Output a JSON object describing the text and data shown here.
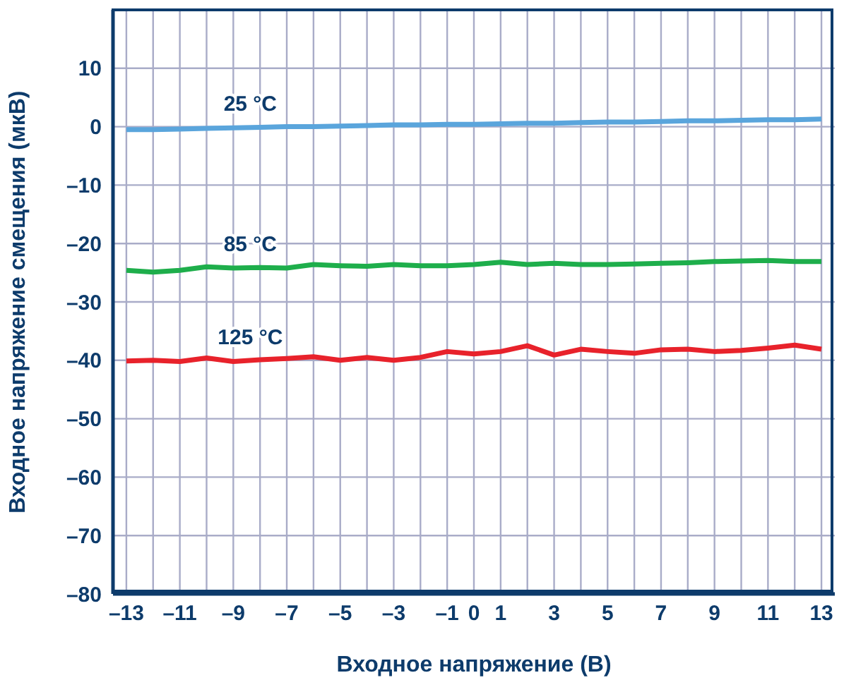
{
  "chart_data": {
    "type": "line",
    "xlabel": "Входное напряжение (В)",
    "ylabel": "Входное напряжение смещения (мкВ)",
    "x": [
      -13,
      -12,
      -11,
      -10,
      -9,
      -8,
      -7,
      -6,
      -5,
      -4,
      -3,
      -2,
      -1,
      0,
      1,
      2,
      3,
      4,
      5,
      6,
      7,
      8,
      9,
      10,
      11,
      12,
      13
    ],
    "series": [
      {
        "name": "25 °C",
        "color": "#5aa5dc",
        "values": [
          -0.5,
          -0.5,
          -0.4,
          -0.3,
          -0.2,
          -0.1,
          0,
          0,
          0.1,
          0.2,
          0.3,
          0.3,
          0.4,
          0.4,
          0.5,
          0.6,
          0.6,
          0.7,
          0.8,
          0.8,
          0.9,
          1,
          1,
          1.1,
          1.2,
          1.2,
          1.3
        ]
      },
      {
        "name": "85 °C",
        "color": "#1eae4b",
        "values": [
          -24.6,
          -24.9,
          -24.6,
          -24,
          -24.2,
          -24.1,
          -24.2,
          -23.6,
          -23.8,
          -23.9,
          -23.6,
          -23.8,
          -23.8,
          -23.6,
          -23.2,
          -23.6,
          -23.4,
          -23.6,
          -23.6,
          -23.5,
          -23.4,
          -23.3,
          -23.1,
          -23,
          -22.9,
          -23.1,
          -23.1
        ]
      },
      {
        "name": "125 °C",
        "color": "#e8222b",
        "values": [
          -40.1,
          -40,
          -40.2,
          -39.6,
          -40.2,
          -39.9,
          -39.7,
          -39.4,
          -40,
          -39.5,
          -40,
          -39.5,
          -38.5,
          -38.9,
          -38.5,
          -37.5,
          -39.1,
          -38.1,
          -38.5,
          -38.8,
          -38.2,
          -38.1,
          -38.5,
          -38.3,
          -37.9,
          -37.4,
          -38.1
        ]
      }
    ],
    "xlim": [
      -13.5,
      13.5
    ],
    "xticks": [
      {
        "value": -13,
        "label": "–13"
      },
      {
        "value": -12,
        "label": null
      },
      {
        "value": -11,
        "label": "–11"
      },
      {
        "value": -10,
        "label": null
      },
      {
        "value": -9,
        "label": "–9"
      },
      {
        "value": -8,
        "label": null
      },
      {
        "value": -7,
        "label": "–7"
      },
      {
        "value": -6,
        "label": null
      },
      {
        "value": -5,
        "label": "–5"
      },
      {
        "value": -4,
        "label": null
      },
      {
        "value": -3,
        "label": "–3"
      },
      {
        "value": -2,
        "label": null
      },
      {
        "value": -1,
        "label": "–1"
      },
      0,
      1,
      {
        "value": 2,
        "label": null
      },
      3,
      {
        "value": 4,
        "label": null
      },
      5,
      {
        "value": 6,
        "label": null
      },
      7,
      {
        "value": 8,
        "label": null
      },
      9,
      {
        "value": 10,
        "label": null
      },
      11,
      {
        "value": 12,
        "label": null
      },
      13
    ],
    "ylim": [
      -80,
      20
    ],
    "yticks": [
      {
        "value": -80,
        "label": "–80"
      },
      {
        "value": -70,
        "label": "–70"
      },
      {
        "value": -60,
        "label": "–60"
      },
      {
        "value": -50,
        "label": "–50"
      },
      {
        "value": -40,
        "label": "–40"
      },
      {
        "value": -30,
        "label": "–30"
      },
      {
        "value": -20,
        "label": "–20"
      },
      {
        "value": -10,
        "label": "–10"
      },
      0,
      10
    ],
    "grid": true,
    "legend": false,
    "marker": "none",
    "line_style": "solid"
  }
}
